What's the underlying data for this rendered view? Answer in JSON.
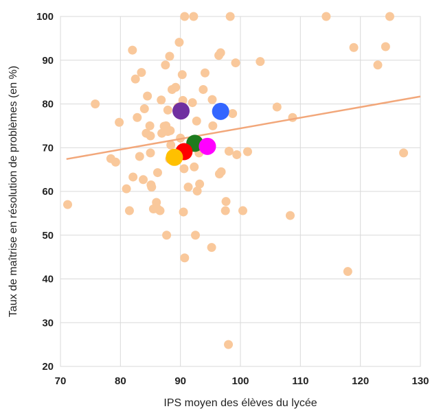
{
  "chart_data": {
    "type": "scatter",
    "title": "",
    "xlabel": "IPS moyen des élèves du lycée",
    "ylabel": "Taux de maîtrise en résolution de problèmes (en %)",
    "xlim": [
      70,
      130
    ],
    "ylim": [
      20,
      100
    ],
    "x_ticks": [
      "70",
      "80",
      "90",
      "100",
      "110",
      "120",
      "130"
    ],
    "y_ticks": [
      "20",
      "30",
      "40",
      "50",
      "60",
      "70",
      "80",
      "90",
      "100"
    ],
    "grid": true,
    "legend": "none",
    "colors": {
      "points": "#F9C89B",
      "trend": "#F2A77A",
      "grid": "#D9D9D9",
      "highlight_purple": "#7030A0",
      "highlight_blue": "#3366FF",
      "highlight_green": "#1E7B1E",
      "highlight_red": "#FF0000",
      "highlight_magenta": "#FF00FF",
      "highlight_yellow": "#FFC000"
    },
    "trendline": {
      "x": [
        71,
        130
      ],
      "y": [
        67.4,
        81.7
      ]
    },
    "series": [
      {
        "points": [
          [
            71.2,
            57
          ],
          [
            75.8,
            80
          ],
          [
            78.4,
            67.5
          ],
          [
            79.2,
            66.7
          ],
          [
            79.8,
            75.8
          ],
          [
            81,
            60.6
          ],
          [
            81.5,
            55.6
          ],
          [
            82,
            92.3
          ],
          [
            82.1,
            63.3
          ],
          [
            82.5,
            85.7
          ],
          [
            82.8,
            76.9
          ],
          [
            83.2,
            68
          ],
          [
            83.5,
            87.2
          ],
          [
            83.8,
            62.7
          ],
          [
            84,
            78.9
          ],
          [
            84.3,
            73.3
          ],
          [
            84.5,
            81.8
          ],
          [
            84.9,
            75
          ],
          [
            85,
            68.8
          ],
          [
            85,
            72.7
          ],
          [
            85.1,
            61.5
          ],
          [
            85.2,
            61
          ],
          [
            85.5,
            56
          ],
          [
            86,
            57.5
          ],
          [
            86.2,
            56
          ],
          [
            86.2,
            64.3
          ],
          [
            86.6,
            55.6
          ],
          [
            86.8,
            80.9
          ],
          [
            86.9,
            73.3
          ],
          [
            87.3,
            74.9
          ],
          [
            87.5,
            88.9
          ],
          [
            87.6,
            75
          ],
          [
            87.7,
            50
          ],
          [
            87.9,
            73.7
          ],
          [
            87.9,
            78.6
          ],
          [
            88.2,
            67.4
          ],
          [
            88.2,
            90.9
          ],
          [
            88.3,
            73.9
          ],
          [
            88.4,
            70.6
          ],
          [
            88.6,
            83.3
          ],
          [
            89.2,
            83.8
          ],
          [
            89.3,
            68
          ],
          [
            89.6,
            79.3
          ],
          [
            89.8,
            94.1
          ],
          [
            90,
            72.2
          ],
          [
            90.3,
            86.7
          ],
          [
            90.4,
            80.8
          ],
          [
            90.5,
            55.3
          ],
          [
            90.6,
            65.2
          ],
          [
            90.7,
            100
          ],
          [
            90.7,
            44.8
          ],
          [
            91.3,
            61
          ],
          [
            92,
            80.3
          ],
          [
            92.2,
            100
          ],
          [
            92.3,
            65.6
          ],
          [
            92.5,
            50
          ],
          [
            92.7,
            76.1
          ],
          [
            92.8,
            60.1
          ],
          [
            93.1,
            68.8
          ],
          [
            93.2,
            61.7
          ],
          [
            93.8,
            83.3
          ],
          [
            94.1,
            87.1
          ],
          [
            95.2,
            47.2
          ],
          [
            95.3,
            81
          ],
          [
            95.4,
            75
          ],
          [
            96.4,
            91.1
          ],
          [
            96.5,
            64
          ],
          [
            96.7,
            91.7
          ],
          [
            96.8,
            64.5
          ],
          [
            97.5,
            55.6
          ],
          [
            97.6,
            57.7
          ],
          [
            98,
            25
          ],
          [
            98.1,
            69.2
          ],
          [
            98.3,
            100
          ],
          [
            98.7,
            77.8
          ],
          [
            99.2,
            89.4
          ],
          [
            99.4,
            68.4
          ],
          [
            100.4,
            55.6
          ],
          [
            101.2,
            69.1
          ],
          [
            103.3,
            89.7
          ],
          [
            106.1,
            79.3
          ],
          [
            108.3,
            54.5
          ],
          [
            108.7,
            76.9
          ],
          [
            114.3,
            100
          ],
          [
            117.9,
            41.7
          ],
          [
            118.9,
            92.9
          ],
          [
            122.9,
            88.9
          ],
          [
            124.2,
            93.1
          ],
          [
            124.9,
            100
          ],
          [
            127.2,
            68.8
          ]
        ]
      },
      {
        "highlight": true,
        "points": [
          [
            90.1,
            78.4,
            "highlight_purple"
          ],
          [
            96.7,
            78.3,
            "highlight_blue"
          ],
          [
            92.4,
            71,
            "highlight_green"
          ],
          [
            90.6,
            69.1,
            "highlight_red"
          ],
          [
            94.5,
            70.3,
            "highlight_magenta"
          ],
          [
            89,
            67.8,
            "highlight_yellow"
          ]
        ]
      }
    ]
  }
}
